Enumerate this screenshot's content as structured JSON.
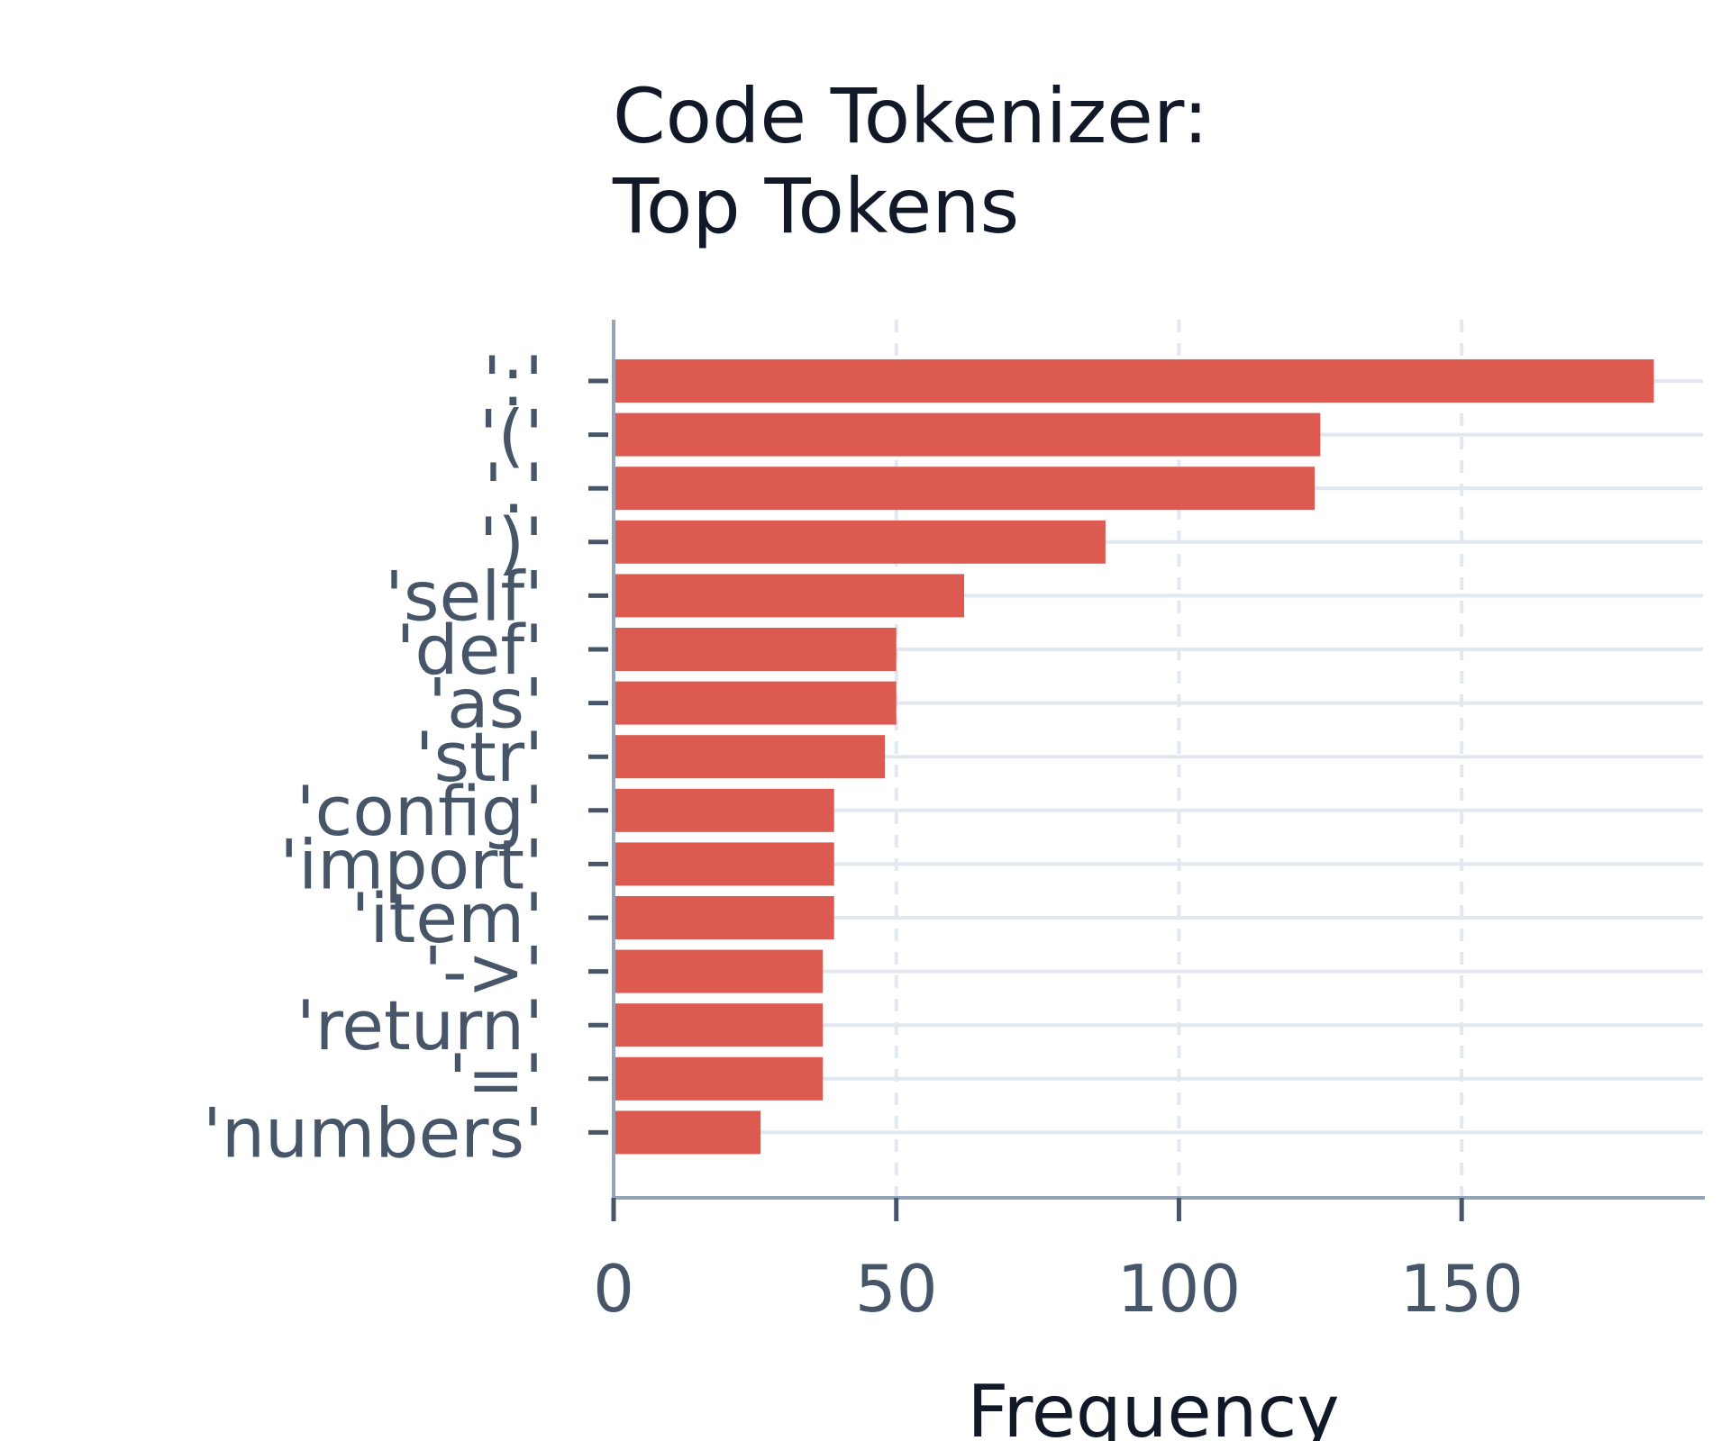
{
  "chart_data": {
    "type": "bar",
    "orientation": "horizontal",
    "title_lines": [
      "Code Tokenizer:",
      "Top Tokens"
    ],
    "xlabel": "Frequency",
    "ylabel": "",
    "xlim": [
      0,
      193
    ],
    "xticks": [
      0,
      50,
      100,
      150
    ],
    "x_grid": "dashed",
    "y_grid": "solid",
    "bar_color": "#dc5a50",
    "categories": [
      "':'",
      "'('",
      "'.'",
      "')'",
      "'self'",
      "'def'",
      "'as'",
      "'str'",
      "'config'",
      "'import'",
      "'item'",
      "'->'",
      "'return'",
      "'='",
      "'numbers'"
    ],
    "values": [
      184,
      125,
      124,
      87,
      62,
      50,
      50,
      48,
      39,
      39,
      39,
      37,
      37,
      37,
      26
    ]
  }
}
